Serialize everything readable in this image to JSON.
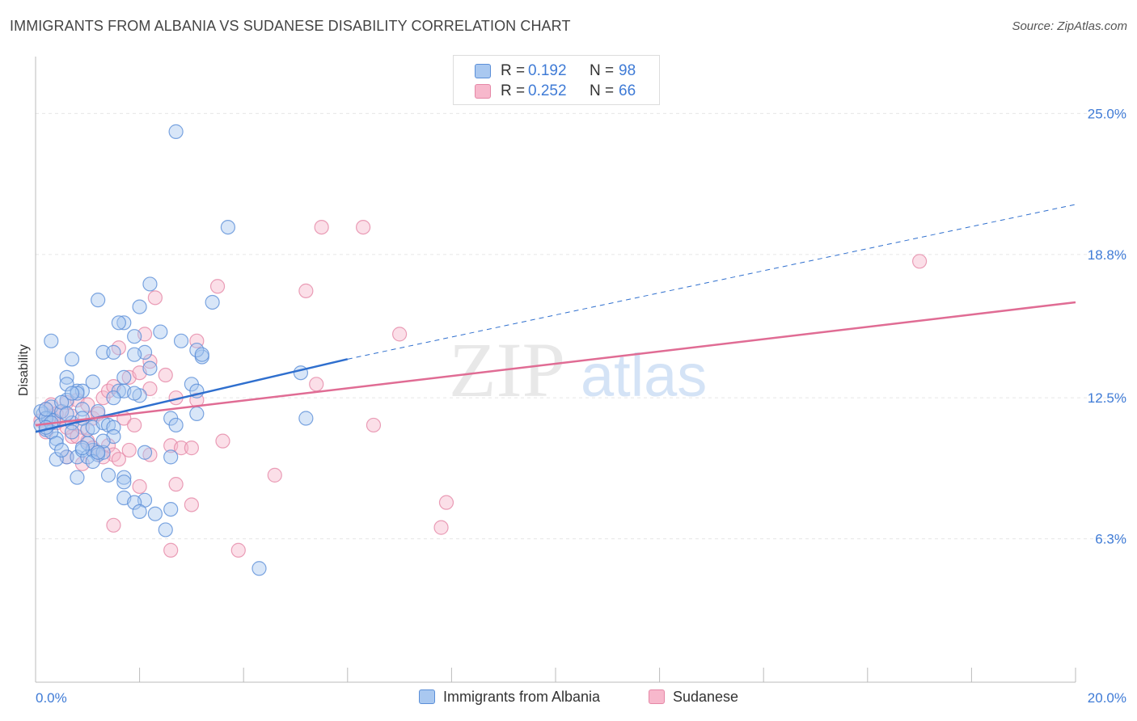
{
  "title": "IMMIGRANTS FROM ALBANIA VS SUDANESE DISABILITY CORRELATION CHART",
  "source": "Source: ZipAtlas.com",
  "legend": {
    "rows": [
      {
        "r_label": "R =",
        "r_value": "0.192",
        "n_label": "N =",
        "n_value": "98"
      },
      {
        "r_label": "R =",
        "r_value": "0.252",
        "n_label": "N =",
        "n_value": "66"
      }
    ]
  },
  "watermark": {
    "zip": "ZIP",
    "atlas": "atlas"
  },
  "colors": {
    "blue_fill": "#a9c8f0",
    "blue_stroke": "#5b8fd8",
    "blue_line": "#2f6fce",
    "pink_fill": "#f7b8cc",
    "pink_stroke": "#e587a6",
    "pink_line": "#e06c94",
    "tick_text": "#3f7bd6",
    "grid": "#e6e6e6"
  },
  "chart_data": {
    "type": "scatter",
    "title": "IMMIGRANTS FROM ALBANIA VS SUDANESE DISABILITY CORRELATION CHART",
    "xlabel": "",
    "ylabel": "Disability",
    "xlim": [
      0,
      20
    ],
    "ylim": [
      0,
      27.5
    ],
    "y_ticks": [
      6.3,
      12.5,
      18.8,
      25.0
    ],
    "y_tick_labels": [
      "6.3%",
      "12.5%",
      "18.8%",
      "25.0%"
    ],
    "x_tick_labels": [
      "0.0%",
      "20.0%"
    ],
    "grid": "horizontal dashed",
    "legend_position": "top-center",
    "series": [
      {
        "name": "Immigrants from Albania",
        "color": "#a9c8f0",
        "trend": {
          "x": [
            0,
            6.0
          ],
          "y": [
            11.0,
            14.2
          ],
          "dashed_extension": {
            "x": [
              6.0,
              20.0
            ],
            "y": [
              14.2,
              21.0
            ]
          }
        },
        "points": [
          [
            0.1,
            11.3
          ],
          [
            0.15,
            11.8
          ],
          [
            0.2,
            11.1
          ],
          [
            0.25,
            11.6
          ],
          [
            0.3,
            12.1
          ],
          [
            0.35,
            11.5
          ],
          [
            0.4,
            10.7
          ],
          [
            0.1,
            11.9
          ],
          [
            0.2,
            11.6
          ],
          [
            0.3,
            11.0
          ],
          [
            0.5,
            11.9
          ],
          [
            0.6,
            12.4
          ],
          [
            0.7,
            11.4
          ],
          [
            0.8,
            12.8
          ],
          [
            0.9,
            12.0
          ],
          [
            1.0,
            11.1
          ],
          [
            0.3,
            15.0
          ],
          [
            0.7,
            14.2
          ],
          [
            0.6,
            13.4
          ],
          [
            0.9,
            12.8
          ],
          [
            0.8,
            12.7
          ],
          [
            1.1,
            11.2
          ],
          [
            1.2,
            11.9
          ],
          [
            1.3,
            11.4
          ],
          [
            1.4,
            11.3
          ],
          [
            1.5,
            11.2
          ],
          [
            1.6,
            12.8
          ],
          [
            1.7,
            12.8
          ],
          [
            0.4,
            10.5
          ],
          [
            0.6,
            9.9
          ],
          [
            0.8,
            9.9
          ],
          [
            0.9,
            10.2
          ],
          [
            1.0,
            9.9
          ],
          [
            1.1,
            10.2
          ],
          [
            1.2,
            10.0
          ],
          [
            1.3,
            10.1
          ],
          [
            1.5,
            10.8
          ],
          [
            0.4,
            9.8
          ],
          [
            0.8,
            9.0
          ],
          [
            1.4,
            9.1
          ],
          [
            1.7,
            9.0
          ],
          [
            1.7,
            8.8
          ],
          [
            1.7,
            8.1
          ],
          [
            2.1,
            8.0
          ],
          [
            1.9,
            7.9
          ],
          [
            2.0,
            7.5
          ],
          [
            2.3,
            7.4
          ],
          [
            2.6,
            7.6
          ],
          [
            2.5,
            6.7
          ],
          [
            4.3,
            5.0
          ],
          [
            2.7,
            24.2
          ],
          [
            3.7,
            20.0
          ],
          [
            2.2,
            17.5
          ],
          [
            1.2,
            16.8
          ],
          [
            3.4,
            16.7
          ],
          [
            1.7,
            15.8
          ],
          [
            1.6,
            15.8
          ],
          [
            2.0,
            16.5
          ],
          [
            2.4,
            15.4
          ],
          [
            1.9,
            15.2
          ],
          [
            2.8,
            15.0
          ],
          [
            1.3,
            14.5
          ],
          [
            1.5,
            14.5
          ],
          [
            2.1,
            14.5
          ],
          [
            1.9,
            14.4
          ],
          [
            3.2,
            14.3
          ],
          [
            3.1,
            14.6
          ],
          [
            3.2,
            14.4
          ],
          [
            2.2,
            13.8
          ],
          [
            1.7,
            13.4
          ],
          [
            1.1,
            13.2
          ],
          [
            3.0,
            13.1
          ],
          [
            3.1,
            12.8
          ],
          [
            2.0,
            12.6
          ],
          [
            1.5,
            12.5
          ],
          [
            2.6,
            11.6
          ],
          [
            3.1,
            11.8
          ],
          [
            2.7,
            11.3
          ],
          [
            2.1,
            10.1
          ],
          [
            2.6,
            9.9
          ],
          [
            5.1,
            13.6
          ],
          [
            5.2,
            11.6
          ],
          [
            0.6,
            13.1
          ],
          [
            0.7,
            12.7
          ],
          [
            1.9,
            12.7
          ],
          [
            0.2,
            12.0
          ],
          [
            0.5,
            12.3
          ],
          [
            0.9,
            11.6
          ],
          [
            1.0,
            10.5
          ],
          [
            1.3,
            10.6
          ],
          [
            0.7,
            11.0
          ],
          [
            0.5,
            10.2
          ],
          [
            1.1,
            9.7
          ],
          [
            1.2,
            10.1
          ],
          [
            0.9,
            10.3
          ],
          [
            0.3,
            11.4
          ],
          [
            0.6,
            11.8
          ],
          [
            0.2,
            11.2
          ]
        ]
      },
      {
        "name": "Sudanese",
        "color": "#f7b8cc",
        "trend": {
          "x": [
            0,
            20.0
          ],
          "y": [
            11.3,
            16.7
          ]
        },
        "points": [
          [
            0.1,
            11.5
          ],
          [
            0.2,
            12.0
          ],
          [
            0.3,
            11.7
          ],
          [
            0.4,
            11.4
          ],
          [
            0.5,
            11.9
          ],
          [
            0.6,
            12.3
          ],
          [
            0.7,
            11.7
          ],
          [
            0.8,
            12.4
          ],
          [
            0.9,
            11.2
          ],
          [
            1.0,
            12.2
          ],
          [
            1.1,
            11.6
          ],
          [
            1.2,
            11.8
          ],
          [
            1.3,
            12.5
          ],
          [
            0.2,
            11.0
          ],
          [
            0.7,
            10.8
          ],
          [
            1.0,
            10.6
          ],
          [
            1.4,
            10.4
          ],
          [
            1.5,
            10.0
          ],
          [
            1.6,
            9.8
          ],
          [
            1.8,
            10.2
          ],
          [
            1.1,
            10.3
          ],
          [
            1.3,
            9.9
          ],
          [
            0.6,
            9.9
          ],
          [
            0.9,
            9.6
          ],
          [
            0.3,
            12.2
          ],
          [
            0.4,
            11.8
          ],
          [
            0.6,
            11.2
          ],
          [
            1.4,
            12.8
          ],
          [
            1.5,
            13.0
          ],
          [
            1.8,
            13.4
          ],
          [
            1.6,
            14.7
          ],
          [
            2.2,
            14.1
          ],
          [
            2.0,
            13.6
          ],
          [
            2.2,
            12.9
          ],
          [
            2.1,
            15.3
          ],
          [
            2.3,
            16.9
          ],
          [
            2.5,
            13.5
          ],
          [
            2.7,
            12.5
          ],
          [
            3.1,
            15.0
          ],
          [
            3.1,
            12.4
          ],
          [
            3.5,
            17.4
          ],
          [
            2.6,
            10.4
          ],
          [
            2.8,
            10.3
          ],
          [
            3.0,
            10.3
          ],
          [
            3.6,
            10.6
          ],
          [
            2.7,
            8.7
          ],
          [
            3.0,
            7.8
          ],
          [
            2.6,
            5.8
          ],
          [
            3.9,
            5.8
          ],
          [
            5.2,
            17.2
          ],
          [
            5.5,
            20.0
          ],
          [
            6.3,
            20.0
          ],
          [
            4.6,
            9.1
          ],
          [
            5.4,
            13.1
          ],
          [
            7.0,
            15.3
          ],
          [
            6.5,
            11.3
          ],
          [
            7.9,
            7.9
          ],
          [
            7.8,
            6.8
          ],
          [
            17.0,
            18.5
          ],
          [
            1.5,
            6.9
          ],
          [
            2.2,
            10.0
          ],
          [
            1.7,
            11.6
          ],
          [
            1.9,
            11.3
          ],
          [
            2.0,
            8.6
          ],
          [
            0.8,
            10.8
          ],
          [
            1.2,
            10.1
          ]
        ]
      }
    ]
  },
  "bottom_legend": [
    "Immigrants from Albania",
    "Sudanese"
  ]
}
